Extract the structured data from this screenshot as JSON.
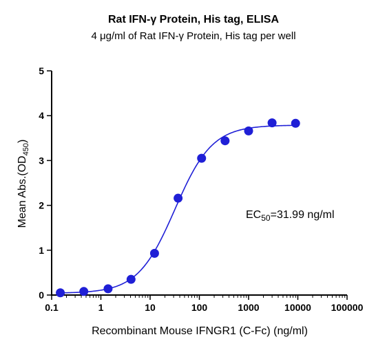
{
  "chart_data": {
    "type": "scatter",
    "title": "Rat IFN-γ Protein, His tag, ELISA",
    "subtitle": "4 μg/ml of Rat IFN-γ Protein, His tag per well",
    "xlabel": "Recombinant Mouse IFNGR1 (C-Fc) (ng/ml)",
    "ylabel_main": "Mean Abs.(OD",
    "ylabel_sub": "450",
    "ylabel_close": ")",
    "x_scale": "log",
    "xlim": [
      0.1,
      100000
    ],
    "ylim": [
      0,
      5
    ],
    "x_ticks": [
      {
        "value": 0.1,
        "label": "0.1"
      },
      {
        "value": 1,
        "label": "1"
      },
      {
        "value": 10,
        "label": "10"
      },
      {
        "value": 100,
        "label": "100"
      },
      {
        "value": 1000,
        "label": "1000"
      },
      {
        "value": 10000,
        "label": "10000"
      },
      {
        "value": 100000,
        "label": "100000"
      }
    ],
    "y_ticks": [
      {
        "value": 0,
        "label": "0"
      },
      {
        "value": 1,
        "label": "1"
      },
      {
        "value": 2,
        "label": "2"
      },
      {
        "value": 3,
        "label": "3"
      },
      {
        "value": 4,
        "label": "4"
      },
      {
        "value": 5,
        "label": "5"
      }
    ],
    "grid": false,
    "series": [
      {
        "color": "#1f1fd6",
        "points": [
          {
            "x": 0.15,
            "y": 0.05
          },
          {
            "x": 0.45,
            "y": 0.08
          },
          {
            "x": 1.4,
            "y": 0.14
          },
          {
            "x": 4.1,
            "y": 0.35
          },
          {
            "x": 12.3,
            "y": 0.93
          },
          {
            "x": 37,
            "y": 2.16
          },
          {
            "x": 111,
            "y": 3.05
          },
          {
            "x": 333,
            "y": 3.44
          },
          {
            "x": 1000,
            "y": 3.66
          },
          {
            "x": 3000,
            "y": 3.84
          },
          {
            "x": 9000,
            "y": 3.83
          }
        ]
      }
    ],
    "fit_curve": {
      "model": "4PL",
      "bottom": 0.04,
      "top": 3.79,
      "ec50": 31.99,
      "hill": 1.15,
      "x_range": [
        0.15,
        9000
      ]
    },
    "annotation": {
      "main": "EC",
      "sub": "50",
      "tail": "=31.99 ng/ml"
    }
  }
}
